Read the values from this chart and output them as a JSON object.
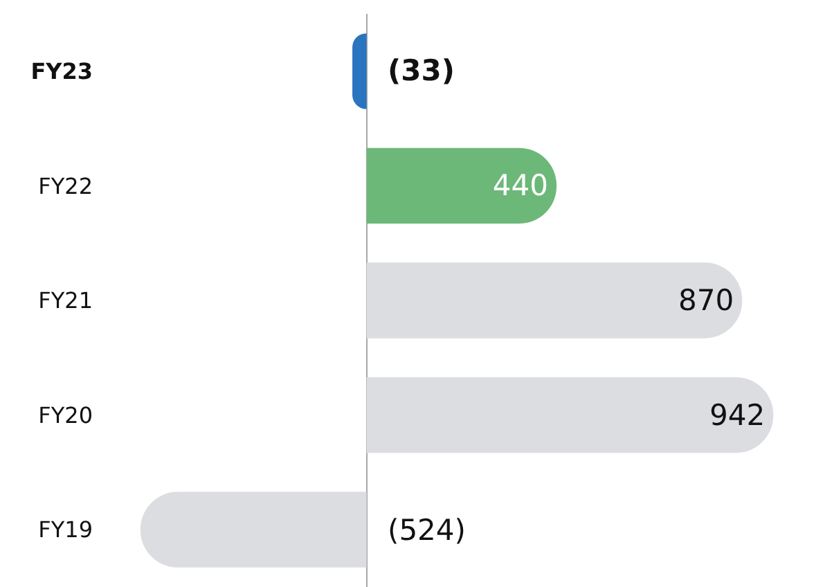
{
  "chart_data": {
    "type": "bar",
    "orientation": "horizontal",
    "categories": [
      "FY23",
      "FY22",
      "FY21",
      "FY20",
      "FY19"
    ],
    "values": [
      -33,
      440,
      870,
      942,
      -524
    ],
    "colors": [
      "#2a74c0",
      "#6cb878",
      "#dcdde0",
      "#dcdde0",
      "#dcdde0"
    ],
    "value_labels": [
      "(33)",
      "440",
      "870",
      "942",
      "(524)"
    ],
    "tick_labels": "y"
  }
}
